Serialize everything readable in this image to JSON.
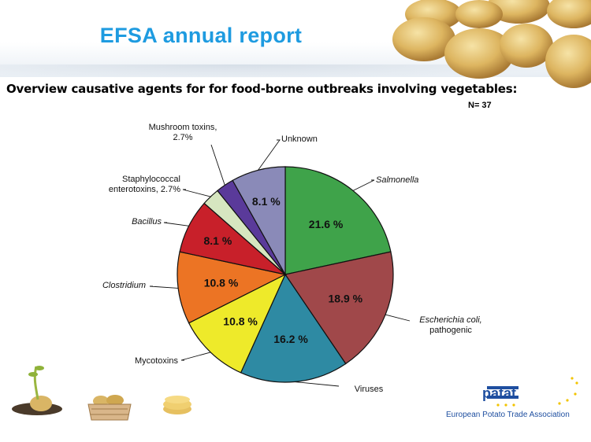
{
  "header": {
    "title": "EFSA annual report"
  },
  "chart_heading": "Overview causative agents for for food-borne outbreaks involving vegetables:",
  "sample_size": "N= 37",
  "chart_data": {
    "type": "pie",
    "title": "Overview causative agents for for food-borne outbreaks involving vegetables:",
    "note": "N= 37",
    "slices": [
      {
        "label": "Salmonella",
        "value": 21.6,
        "value_label": "21.6 %",
        "color": "#3fa34a",
        "italic": true
      },
      {
        "label": "Escherichia coli, pathogenic",
        "value": 18.9,
        "value_label": "18.9 %",
        "color": "#a0484a",
        "italic": true
      },
      {
        "label": "Viruses",
        "value": 16.2,
        "value_label": "16.2 %",
        "color": "#2e8aa3",
        "italic": false
      },
      {
        "label": "Mycotoxins",
        "value": 10.8,
        "value_label": "10.8 %",
        "color": "#eeea2a",
        "italic": false
      },
      {
        "label": "Clostridium",
        "value": 10.8,
        "value_label": "10.8 %",
        "color": "#ec7424",
        "italic": true
      },
      {
        "label": "Bacillus",
        "value": 8.1,
        "value_label": "8.1 %",
        "color": "#c8202a",
        "italic": true
      },
      {
        "label": "Staphylococcal enterotoxins, 2.7%",
        "value": 2.7,
        "value_label": "",
        "color": "#d6e6c0",
        "italic": false
      },
      {
        "label": "Mushroom toxins, 2.7%",
        "value": 2.7,
        "value_label": "",
        "color": "#5a3a9a",
        "italic": false
      },
      {
        "label": "Unknown",
        "value": 8.1,
        "value_label": "8.1 %",
        "color": "#8a8ab8",
        "italic": false
      }
    ]
  },
  "footer": {
    "logo_text": "patat",
    "association_name": "European Potato Trade Association"
  },
  "icons": {
    "potatoes": "potatoes-image-icon",
    "sprout": "sprouting-potato-icon",
    "basket": "potato-basket-icon",
    "chips": "potato-chips-icon",
    "logo": "europatat-logo-icon"
  }
}
